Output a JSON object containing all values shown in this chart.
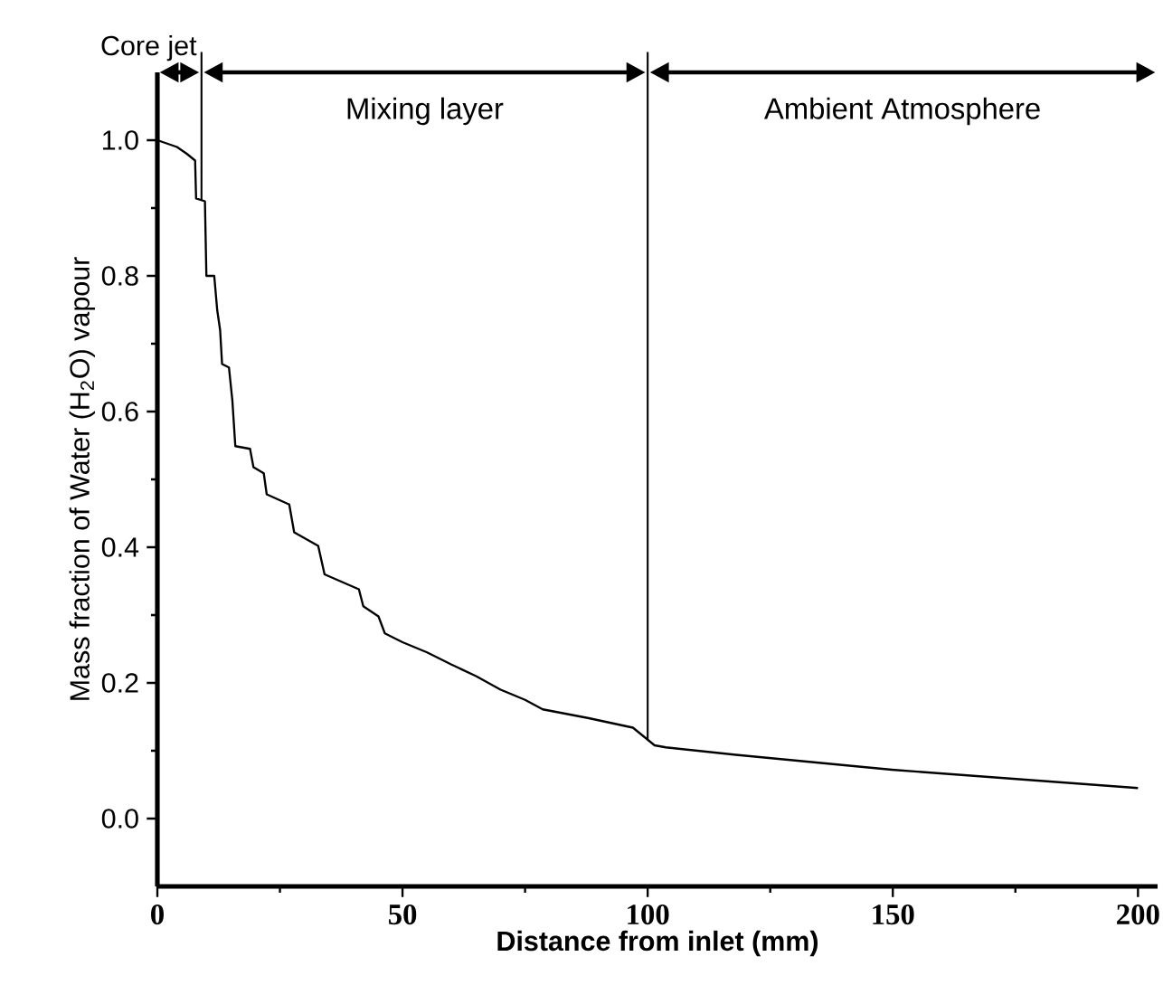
{
  "chart_data": {
    "type": "line",
    "xlabel": "Distance from inlet (mm)",
    "ylabel": "Mass fraction of Water (H$_{2}$O) vapour",
    "xlim": [
      0,
      204
    ],
    "ylim": [
      -0.1,
      1.1
    ],
    "xticks": [
      0,
      50,
      100,
      150,
      200
    ],
    "yticks": [
      {
        "value": 0,
        "label": "0.0"
      },
      0.2,
      0.4,
      0.6,
      0.8,
      {
        "value": 1,
        "label": "1.0"
      }
    ],
    "series": [
      {
        "color": "#000000",
        "x": [
          0,
          2,
          4,
          6,
          7.7,
          7.9,
          9.7,
          10,
          11.6,
          12.2,
          12.8,
          13.2,
          14.6,
          15.3,
          15.9,
          18.9,
          19.6,
          21.7,
          22.3,
          26.9,
          27.9,
          32.8,
          34.1,
          41.1,
          42,
          45.1,
          46.4,
          50,
          55,
          60,
          65,
          70,
          75,
          78.6,
          88,
          97,
          101.4,
          103.7,
          118,
          149.8,
          200
        ],
        "values": [
          1.0,
          0.995,
          0.99,
          0.98,
          0.97,
          0.914,
          0.91,
          0.8,
          0.8,
          0.75,
          0.72,
          0.67,
          0.665,
          0.616,
          0.549,
          0.545,
          0.518,
          0.509,
          0.478,
          0.463,
          0.422,
          0.402,
          0.36,
          0.338,
          0.313,
          0.298,
          0.273,
          0.26,
          0.245,
          0.227,
          0.21,
          0.19,
          0.175,
          0.161,
          0.148,
          0.134,
          0.108,
          0.105,
          0.094,
          0.072,
          0.045
        ]
      }
    ],
    "ref_lines": [
      {
        "axis": "x",
        "value": 9
      },
      {
        "axis": "x",
        "value": 100
      }
    ],
    "annotations": [
      "Core jet",
      "Mixing layer",
      "Ambient Atmosphere"
    ],
    "grid": false,
    "marker": "none",
    "line_style": "solid"
  }
}
